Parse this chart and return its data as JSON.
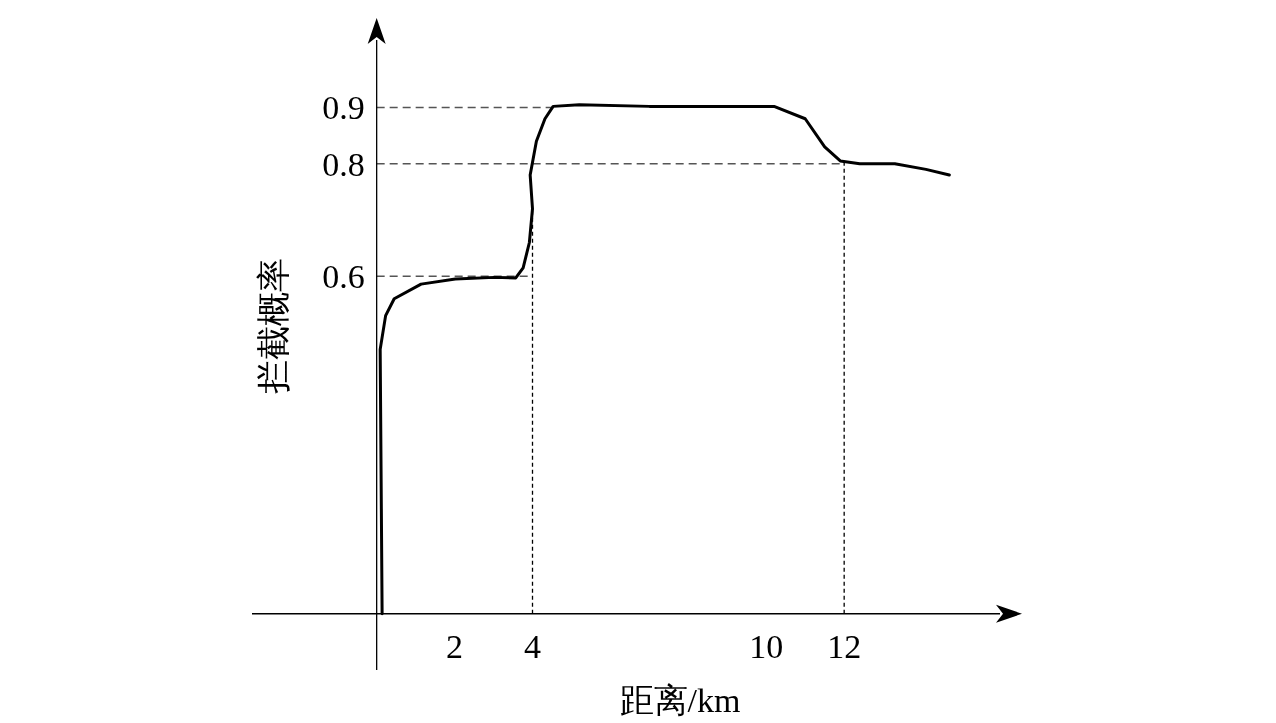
{
  "chart_data": {
    "type": "line",
    "xlabel": "距离/km",
    "ylabel": "拦截概率",
    "xlim": [
      -3.2,
      16
    ],
    "ylim": [
      -0.1,
      1.02
    ],
    "xticks": [
      2,
      4,
      10,
      12
    ],
    "yticks": [
      0.6,
      0.8,
      0.9
    ],
    "grid": false,
    "marker": "none",
    "line_style": "solid",
    "series": [
      {
        "color": "#000000",
        "x": [
          0.14,
          0.09,
          0.23,
          0.45,
          1.14,
          2.02,
          3.02,
          3.57,
          3.76,
          3.92,
          4.0,
          3.94,
          4.1,
          4.32,
          4.53,
          5.2,
          7.0,
          10.2,
          11.0,
          11.5,
          11.9,
          12.4,
          13.3,
          14.1,
          14.7
        ],
        "values": [
          0,
          0.47,
          0.53,
          0.56,
          0.586,
          0.595,
          0.598,
          0.597,
          0.615,
          0.66,
          0.72,
          0.78,
          0.84,
          0.88,
          0.902,
          0.905,
          0.902,
          0.902,
          0.88,
          0.83,
          0.805,
          0.8,
          0.8,
          0.79,
          0.78
        ]
      }
    ],
    "ref_lines": [
      {
        "axis": "y",
        "value": 0.9,
        "color": "#555555",
        "line_style": "dashed"
      },
      {
        "axis": "y",
        "value": 0.8,
        "color": "#555555",
        "line_style": "dashed"
      },
      {
        "axis": "y",
        "value": 0.6,
        "color": "#555555",
        "line_style": "dashed"
      },
      {
        "axis": "x",
        "value": 4,
        "color": "#000000",
        "line_style": "dotted"
      },
      {
        "axis": "x",
        "value": 12,
        "color": "#000000",
        "line_style": "dotted"
      }
    ]
  }
}
